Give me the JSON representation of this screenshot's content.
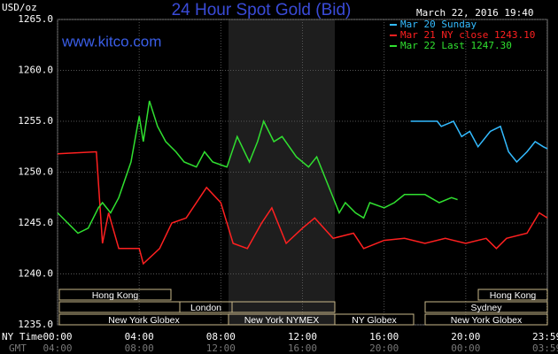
{
  "chart_data": {
    "type": "line",
    "title": "24 Hour Spot Gold (Bid)",
    "subtitle": "www.kitco.com",
    "timestamp": "March 22, 2016 19:40",
    "y_label": "USD/oz",
    "x_label": "NY Time",
    "x2_label": "GMT",
    "xlim": [
      0,
      24
    ],
    "ylim": [
      1235,
      1265
    ],
    "xticks": [
      {
        "value": 0,
        "label": "00:00"
      },
      {
        "value": 4,
        "label": "04:00"
      },
      {
        "value": 8,
        "label": "08:00"
      },
      {
        "value": 12,
        "label": "12:00"
      },
      {
        "value": 16,
        "label": "16:00"
      },
      {
        "value": 20,
        "label": "20:00"
      },
      {
        "value": 23.98,
        "label": "23:59"
      }
    ],
    "x2ticks": [
      {
        "value": 0,
        "label": "04:00"
      },
      {
        "value": 4,
        "label": "08:00"
      },
      {
        "value": 8,
        "label": "12:00"
      },
      {
        "value": 12,
        "label": "16:00"
      },
      {
        "value": 16,
        "label": "20:00"
      },
      {
        "value": 20,
        "label": "00:00"
      },
      {
        "value": 23.98,
        "label": "03:59"
      }
    ],
    "yticks": [
      {
        "value": 1235,
        "label": "1235.0"
      },
      {
        "value": 1240,
        "label": "1240.0"
      },
      {
        "value": 1245,
        "label": "1245.0"
      },
      {
        "value": 1250,
        "label": "1250.0"
      },
      {
        "value": 1255,
        "label": "1255.0"
      },
      {
        "value": 1260,
        "label": "1260.0"
      },
      {
        "value": 1265,
        "label": "1265.0"
      }
    ],
    "grid": true,
    "legend": "top-right",
    "sessions": [
      {
        "label": "Hong Kong"
      },
      {
        "label": "Hong Kong"
      },
      {
        "label": "London"
      },
      {
        "label": "Sydney"
      },
      {
        "label": "New York Globex"
      },
      {
        "label": "New York NYMEX"
      },
      {
        "label": "NY Globex"
      },
      {
        "label": "New York Globex"
      }
    ],
    "series": [
      {
        "name": "Mar 20 Sunday",
        "color": "#33bbff",
        "x": [
          17.3,
          18.6,
          18.8,
          19.4,
          19.8,
          20.2,
          20.6,
          21.2,
          21.7,
          22.1,
          22.5,
          23,
          23.4,
          23.8,
          24
        ],
        "values": [
          1255,
          1255,
          1254.5,
          1255,
          1253.5,
          1254,
          1252.5,
          1254,
          1254.5,
          1252,
          1251,
          1252,
          1253,
          1252.5,
          1252.3
        ]
      },
      {
        "name": "Mar 21 NY close 1243.10",
        "color": "#ff2020",
        "x": [
          0,
          1.9,
          2.2,
          2.5,
          3,
          4,
          4.2,
          5,
          5.6,
          6.3,
          7.3,
          8,
          8.6,
          9.3,
          10,
          10.5,
          11.2,
          12,
          12.6,
          13.5,
          14.5,
          15,
          16,
          17,
          18,
          19,
          20,
          21,
          21.5,
          22,
          23,
          23.6,
          24
        ],
        "values": [
          1251.8,
          1252,
          1243,
          1246,
          1242.5,
          1242.5,
          1241,
          1242.5,
          1245,
          1245.5,
          1248.5,
          1247,
          1243,
          1242.5,
          1245,
          1246.5,
          1243,
          1244.5,
          1245.5,
          1243.5,
          1244,
          1242.5,
          1243.3,
          1243.5,
          1243,
          1243.5,
          1243,
          1243.5,
          1242.5,
          1243.5,
          1244,
          1246,
          1245.5
        ]
      },
      {
        "name": "Mar 22 Last 1247.30",
        "color": "#30e030",
        "x": [
          0,
          0.5,
          1,
          1.5,
          2,
          2.2,
          2.6,
          3,
          3.6,
          4,
          4.2,
          4.5,
          4.9,
          5.3,
          5.8,
          6.2,
          6.8,
          7.2,
          7.6,
          8.3,
          8.8,
          9.4,
          9.8,
          10.1,
          10.6,
          11,
          11.7,
          12.3,
          12.7,
          13.4,
          13.8,
          14.1,
          14.6,
          15,
          15.3,
          16,
          16.5,
          17,
          18,
          18.7,
          19.3,
          19.6
        ],
        "values": [
          1246,
          1245,
          1244,
          1244.5,
          1246.5,
          1247,
          1246,
          1247.5,
          1251,
          1255.5,
          1253,
          1257,
          1254.5,
          1253,
          1252,
          1251,
          1250.5,
          1252,
          1251,
          1250.5,
          1253.5,
          1251,
          1253,
          1255,
          1253,
          1253.5,
          1251.5,
          1250.5,
          1251.5,
          1248,
          1246,
          1247,
          1246,
          1245.5,
          1247,
          1246.5,
          1247,
          1247.8,
          1247.8,
          1247,
          1247.5,
          1247.3
        ]
      }
    ]
  }
}
